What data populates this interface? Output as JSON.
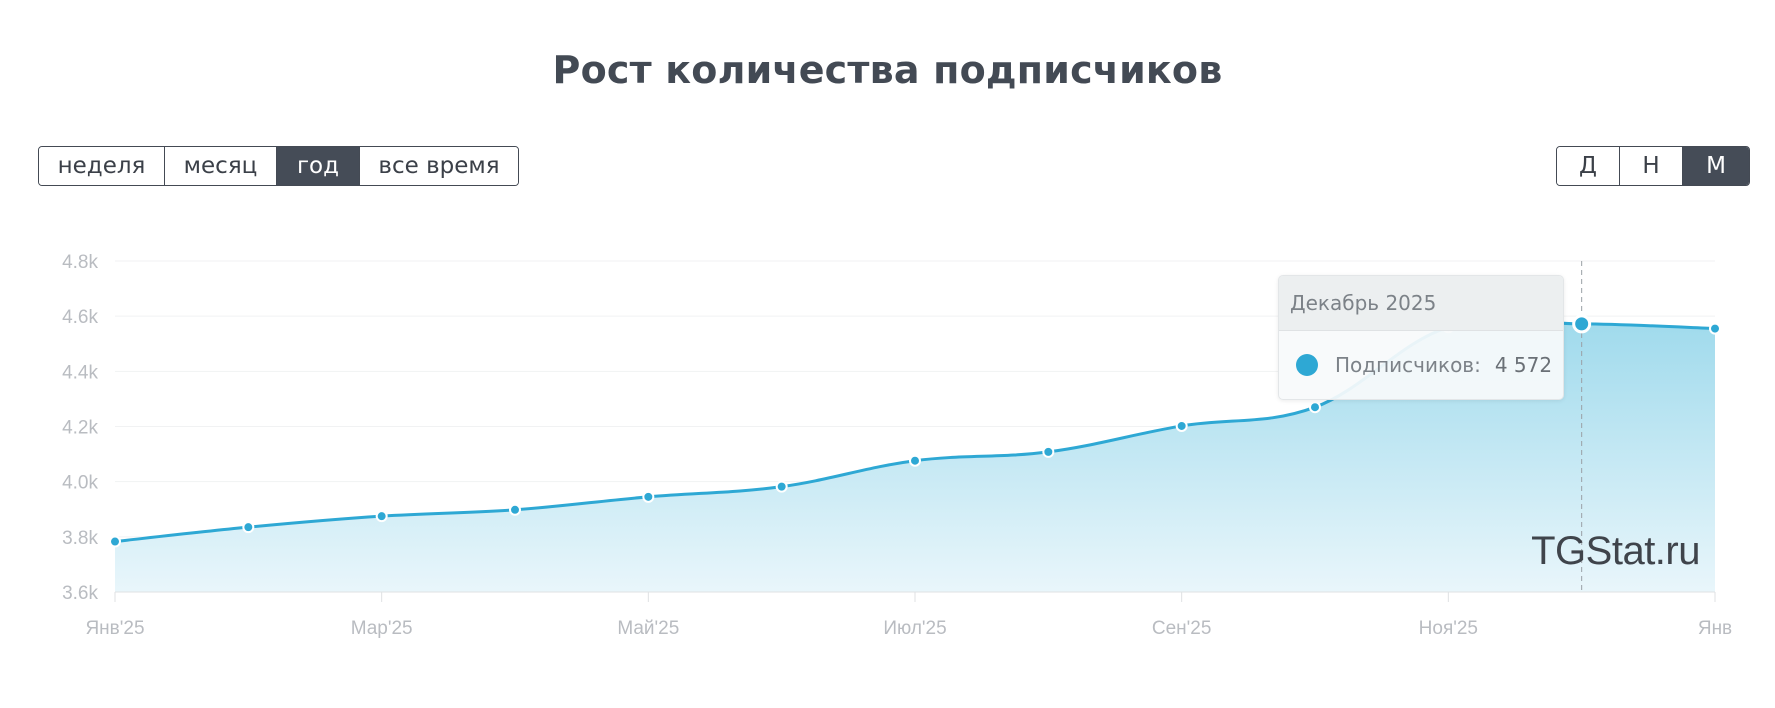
{
  "title": "Рост количества подписчиков",
  "period_buttons": [
    {
      "label": "неделя",
      "active": false
    },
    {
      "label": "месяц",
      "active": false
    },
    {
      "label": "год",
      "active": true
    },
    {
      "label": "все время",
      "active": false
    }
  ],
  "grain_buttons": [
    {
      "label": "Д",
      "active": false
    },
    {
      "label": "Н",
      "active": false
    },
    {
      "label": "М",
      "active": true
    }
  ],
  "colors": {
    "line": "#2ea8d4",
    "area_top": "#9fdaec",
    "area_bottom": "#e9f6fb",
    "active_button": "#454c57"
  },
  "chart_data": {
    "type": "area",
    "title": "Рост количества подписчиков",
    "xlabel": "",
    "ylabel": "",
    "x": [
      "2025-01",
      "2025-02",
      "2025-03",
      "2025-04",
      "2025-05",
      "2025-06",
      "2025-07",
      "2025-08",
      "2025-09",
      "2025-10",
      "2025-11",
      "2025-12",
      "2026-01"
    ],
    "series": [
      {
        "values": [
          3783,
          3835,
          3875,
          3898,
          3945,
          3982,
          4076,
          4108,
          4202,
          4270,
          4560,
          4572,
          4555
        ]
      }
    ],
    "ylim": [
      3600,
      4800
    ],
    "y_ticks": [
      "3.6k",
      "3.8k",
      "4.0k",
      "4.2k",
      "4.4k",
      "4.6k",
      "4.8k"
    ],
    "x_tick_labels": [
      {
        "x": "2025-01",
        "label": "Янв'25"
      },
      {
        "x": "2025-03",
        "label": "Мар'25"
      },
      {
        "x": "2025-05",
        "label": "Май'25"
      },
      {
        "x": "2025-07",
        "label": "Июл'25"
      },
      {
        "x": "2025-09",
        "label": "Сен'25"
      },
      {
        "x": "2025-11",
        "label": "Ноя'25"
      },
      {
        "x": "2026-01",
        "label": "Янв"
      }
    ],
    "grid": true,
    "legend": "none",
    "hover_x": "2025-12"
  },
  "tooltip": {
    "header": "Декабрь 2025",
    "label": "Подписчиков:",
    "value": "4 572"
  },
  "watermark": "TGStat.ru"
}
